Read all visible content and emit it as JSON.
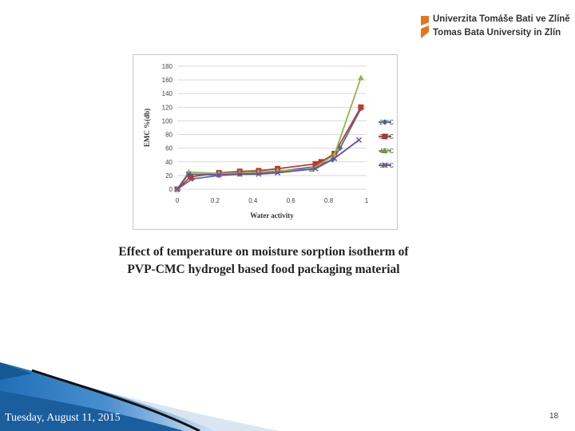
{
  "logo": {
    "line1": "Univerzita Tomáše Bati ve Zlíně",
    "line2": "Tomas Bata University in Zlín",
    "brand_color": "#e8731c"
  },
  "chart_data": {
    "type": "line",
    "xlabel": "Water activity",
    "ylabel": "EMC %(db)",
    "xlim": [
      0,
      1
    ],
    "ylim": [
      0,
      180
    ],
    "x_ticks": [
      0,
      0.2,
      0.4,
      0.6,
      0.8,
      1
    ],
    "x_tick_labels": [
      "0",
      "0.2",
      "0.4",
      "0.6",
      "0.8",
      "1"
    ],
    "y_ticks": [
      0,
      20,
      40,
      60,
      80,
      100,
      120,
      140,
      160,
      180
    ],
    "grid": true,
    "legend_position": "right",
    "series": [
      {
        "name": "25°C",
        "color": "#4a6fb5",
        "marker": "diamond",
        "points": [
          [
            0,
            0
          ],
          [
            0.08,
            15
          ],
          [
            0.22,
            20
          ],
          [
            0.33,
            22
          ],
          [
            0.43,
            24
          ],
          [
            0.53,
            26
          ],
          [
            0.73,
            33
          ],
          [
            0.82,
            43
          ],
          [
            0.86,
            60
          ],
          [
            0.97,
            118
          ]
        ]
      },
      {
        "name": "35°C",
        "color": "#c0392b",
        "marker": "square",
        "points": [
          [
            0,
            0
          ],
          [
            0.07,
            18
          ],
          [
            0.22,
            24
          ],
          [
            0.33,
            26
          ],
          [
            0.43,
            27
          ],
          [
            0.53,
            30
          ],
          [
            0.73,
            37
          ],
          [
            0.76,
            40
          ],
          [
            0.83,
            52
          ],
          [
            0.97,
            120
          ]
        ]
      },
      {
        "name": "45°C",
        "color": "#8db84a",
        "marker": "triangle",
        "points": [
          [
            0,
            0
          ],
          [
            0.06,
            25
          ],
          [
            0.22,
            23
          ],
          [
            0.33,
            24
          ],
          [
            0.43,
            25
          ],
          [
            0.53,
            27
          ],
          [
            0.71,
            29
          ],
          [
            0.83,
            50
          ],
          [
            0.97,
            163
          ]
        ]
      },
      {
        "name": "55°C",
        "color": "#6a4c9c",
        "marker": "x",
        "points": [
          [
            0,
            0
          ],
          [
            0.06,
            22
          ],
          [
            0.22,
            21
          ],
          [
            0.33,
            22
          ],
          [
            0.43,
            22
          ],
          [
            0.53,
            24
          ],
          [
            0.73,
            30
          ],
          [
            0.83,
            45
          ],
          [
            0.96,
            72
          ]
        ]
      }
    ]
  },
  "caption": {
    "line1": "Effect of temperature on moisture sorption isotherm of",
    "line2": "PVP-CMC hydrogel based food packaging material"
  },
  "footer": {
    "date": "Tuesday, August 11, 2015",
    "page_number": "18",
    "accent_color": "#1f6fb5"
  }
}
